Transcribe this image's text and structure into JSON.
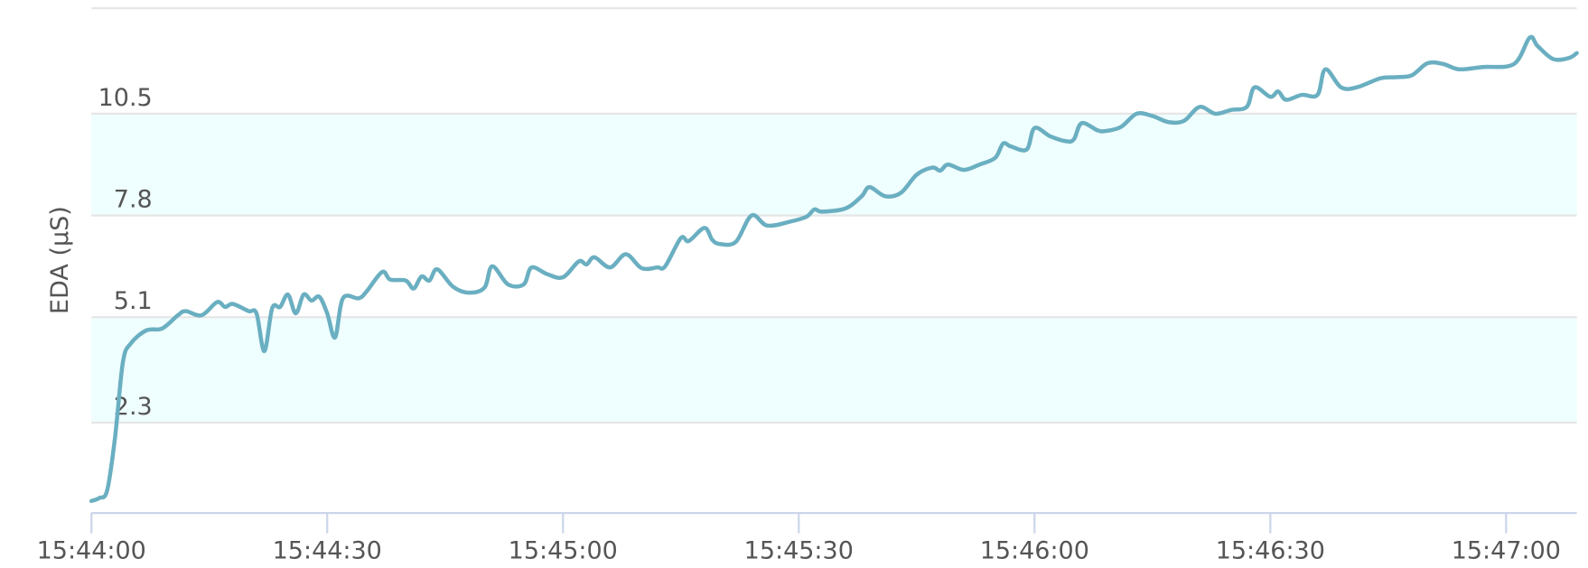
{
  "chart_data": {
    "type": "line",
    "y_label": "EDA (µS)",
    "color": "#6aafc1",
    "band_color": "#effefe",
    "bands": [
      [
        2.3,
        5.1
      ],
      [
        7.8,
        10.5
      ]
    ],
    "x": [
      "15:44:00",
      "15:44:01",
      "15:44:02",
      "15:44:03",
      "15:44:04",
      "15:44:05",
      "15:44:07",
      "15:44:09",
      "15:44:11",
      "15:44:12",
      "15:44:14",
      "15:44:16",
      "15:44:17",
      "15:44:18",
      "15:44:20",
      "15:44:21",
      "15:44:22",
      "15:44:23",
      "15:44:24",
      "15:44:25",
      "15:44:26",
      "15:44:27",
      "15:44:28",
      "15:44:29",
      "15:44:30",
      "15:44:31",
      "15:44:32",
      "15:44:34",
      "15:44:35",
      "15:44:37",
      "15:44:38",
      "15:44:40",
      "15:44:41",
      "15:44:42",
      "15:44:43",
      "15:44:44",
      "15:44:46",
      "15:44:48",
      "15:44:50",
      "15:44:51",
      "15:44:53",
      "15:44:55",
      "15:44:56",
      "15:44:58",
      "15:45:00",
      "15:45:02",
      "15:45:03",
      "15:45:04",
      "15:45:06",
      "15:45:08",
      "15:45:10",
      "15:45:12",
      "15:45:13",
      "15:45:15",
      "15:45:16",
      "15:45:18",
      "15:45:19",
      "15:45:20",
      "15:45:22",
      "15:45:24",
      "15:45:26",
      "15:45:29",
      "15:45:31",
      "15:45:32",
      "15:45:33",
      "15:45:36",
      "15:45:38",
      "15:45:39",
      "15:45:41",
      "15:45:43",
      "15:45:45",
      "15:45:47",
      "15:45:48",
      "15:45:49",
      "15:45:51",
      "15:45:53",
      "15:45:55",
      "15:45:56",
      "15:45:57",
      "15:45:59",
      "15:46:00",
      "15:46:02",
      "15:46:04",
      "15:46:05",
      "15:46:06",
      "15:46:08",
      "15:46:09",
      "15:46:11",
      "15:46:13",
      "15:46:15",
      "15:46:17",
      "15:46:19",
      "15:46:21",
      "15:46:23",
      "15:46:25",
      "15:46:27",
      "15:46:28",
      "15:46:30",
      "15:46:31",
      "15:46:32",
      "15:46:34",
      "15:46:36",
      "15:46:37",
      "15:46:39",
      "15:46:41",
      "15:46:44",
      "15:46:46",
      "15:46:48",
      "15:46:50",
      "15:46:52",
      "15:46:54",
      "15:46:57",
      "15:47:01",
      "15:47:03",
      "15:47:04",
      "15:47:06",
      "15:47:08",
      "15:47:09"
    ],
    "values": [
      0.22,
      0.3,
      0.5,
      1.9,
      3.9,
      4.4,
      4.75,
      4.8,
      5.15,
      5.26,
      5.15,
      5.5,
      5.37,
      5.45,
      5.26,
      5.2,
      4.2,
      5.34,
      5.37,
      5.7,
      5.2,
      5.7,
      5.54,
      5.64,
      5.2,
      4.56,
      5.6,
      5.6,
      5.78,
      6.3,
      6.1,
      6.07,
      5.86,
      6.18,
      6.07,
      6.37,
      5.91,
      5.75,
      5.88,
      6.45,
      5.97,
      5.97,
      6.42,
      6.24,
      6.16,
      6.58,
      6.5,
      6.69,
      6.42,
      6.77,
      6.4,
      6.42,
      6.45,
      7.2,
      7.12,
      7.47,
      7.15,
      7.04,
      7.1,
      7.8,
      7.53,
      7.64,
      7.77,
      7.96,
      7.9,
      7.99,
      8.31,
      8.55,
      8.31,
      8.4,
      8.88,
      9.07,
      8.99,
      9.15,
      9.01,
      9.15,
      9.33,
      9.71,
      9.63,
      9.55,
      10.12,
      9.9,
      9.77,
      9.82,
      10.25,
      10.06,
      10.04,
      10.15,
      10.5,
      10.44,
      10.28,
      10.31,
      10.68,
      10.5,
      10.6,
      10.68,
      11.2,
      10.95,
      11.09,
      10.87,
      11.0,
      11.0,
      11.68,
      11.2,
      11.2,
      11.44,
      11.47,
      11.52,
      11.84,
      11.82,
      11.68,
      11.74,
      11.82,
      12.52,
      12.3,
      11.95,
      11.98,
      12.11
    ],
    "xlim": [
      "15:44:00",
      "15:47:09"
    ],
    "xticks": [
      "15:44:00",
      "15:44:30",
      "15:45:00",
      "15:45:30",
      "15:46:00",
      "15:46:30",
      "15:47:00"
    ],
    "ylim": [
      -0.1,
      13.3
    ],
    "yticks": [
      2.3,
      5.1,
      7.8,
      10.5
    ],
    "grid": true
  }
}
